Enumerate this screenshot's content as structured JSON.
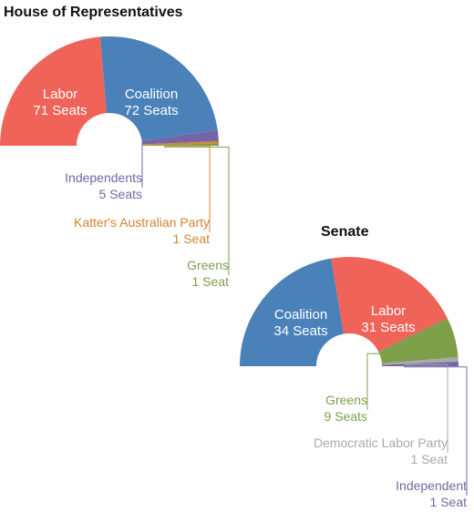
{
  "chart_data": [
    {
      "type": "pie",
      "style": "half-donut parliament chart",
      "title": "House of Representatives",
      "seat_unit": "Seats",
      "slices": [
        {
          "name": "Labor",
          "value": 71,
          "label": "71 Seats",
          "color": "#ef6358",
          "label_position": "inside"
        },
        {
          "name": "Coalition",
          "value": 72,
          "label": "72 Seats",
          "color": "#4a81b8",
          "label_position": "inside"
        },
        {
          "name": "Independents",
          "value": 5,
          "label": "5 Seats",
          "color": "#7466a6",
          "label_position": "outside"
        },
        {
          "name": "Katter's Australian Party",
          "value": 1,
          "label": "1 Seat",
          "color": "#d4842f",
          "label_position": "outside"
        },
        {
          "name": "Greens",
          "value": 1,
          "label": "1 Seat",
          "color": "#7d9f4a",
          "label_position": "outside"
        }
      ]
    },
    {
      "type": "pie",
      "style": "half-donut parliament chart",
      "title": "Senate",
      "seat_unit": "Seats",
      "slices": [
        {
          "name": "Coalition",
          "value": 34,
          "label": "34 Seats",
          "color": "#4a81b8",
          "label_position": "inside"
        },
        {
          "name": "Labor",
          "value": 31,
          "label": "31 Seats",
          "color": "#ef6358",
          "label_position": "inside"
        },
        {
          "name": "Greens",
          "value": 9,
          "label": "9 Seats",
          "color": "#7d9f4a",
          "label_position": "outside"
        },
        {
          "name": "Democratic Labor Party",
          "value": 1,
          "label": "1 Seat",
          "color": "#a9a9a9",
          "label_position": "outside"
        },
        {
          "name": "Independent",
          "value": 1,
          "label": "1 Seat",
          "color": "#7466a6",
          "label_position": "outside"
        }
      ]
    }
  ]
}
